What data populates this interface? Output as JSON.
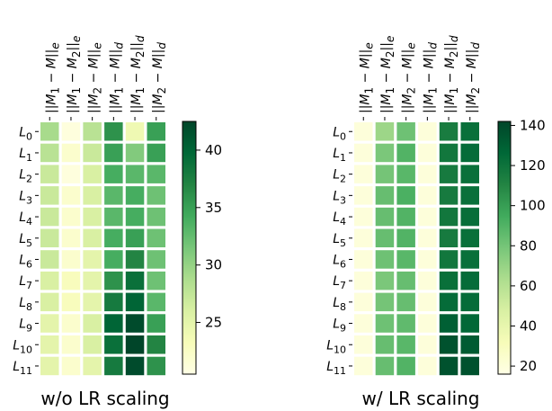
{
  "chart_data": [
    {
      "type": "heatmap",
      "caption": "w/o LR scaling",
      "columns": [
        "||M1 − M||e",
        "||M1 − M2||e",
        "||M2 − M||e",
        "||M1 − M||d",
        "||M1 − M2||d",
        "||M2 − M||d"
      ],
      "rows": [
        "L0",
        "L1",
        "L2",
        "L3",
        "L4",
        "L5",
        "L6",
        "L7",
        "L8",
        "L9",
        "L10",
        "L11"
      ],
      "values": [
        [
          29,
          21,
          28,
          36,
          24,
          35
        ],
        [
          28,
          22,
          27,
          35,
          31,
          35
        ],
        [
          27,
          21,
          26,
          34,
          33,
          33
        ],
        [
          27,
          22,
          26,
          33,
          34,
          32
        ],
        [
          27,
          22,
          26,
          33,
          34,
          32
        ],
        [
          27,
          22,
          26,
          34,
          35,
          32
        ],
        [
          27,
          22,
          25,
          34,
          37,
          32
        ],
        [
          26,
          23,
          25,
          36,
          39,
          32
        ],
        [
          26,
          23,
          25,
          38,
          40,
          33
        ],
        [
          25,
          22,
          26,
          40,
          42,
          35
        ],
        [
          25,
          22,
          26,
          39,
          43,
          37
        ],
        [
          25,
          22,
          25,
          38,
          42,
          36
        ]
      ],
      "colorbar": {
        "min": 20.5,
        "max": 42.5,
        "ticks": [
          25,
          30,
          35,
          40
        ]
      }
    },
    {
      "type": "heatmap",
      "caption": "w/ LR scaling",
      "columns": [
        "||M1 − M||e",
        "||M1 − M2||e",
        "||M2 − M||e",
        "||M1 − M||d",
        "||M1 − M2||d",
        "||M2 − M||d"
      ],
      "rows": [
        "L0",
        "L1",
        "L2",
        "L3",
        "L4",
        "L5",
        "L6",
        "L7",
        "L8",
        "L9",
        "L10",
        "L11"
      ],
      "values": [
        [
          20,
          68,
          82,
          20,
          115,
          122
        ],
        [
          20,
          78,
          90,
          20,
          118,
          124
        ],
        [
          20,
          80,
          88,
          20,
          116,
          122
        ],
        [
          20,
          84,
          92,
          20,
          116,
          122
        ],
        [
          20,
          84,
          90,
          20,
          118,
          123
        ],
        [
          20,
          84,
          90,
          20,
          116,
          122
        ],
        [
          20,
          82,
          88,
          20,
          118,
          122
        ],
        [
          20,
          78,
          84,
          20,
          122,
          124
        ],
        [
          20,
          80,
          84,
          20,
          124,
          124
        ],
        [
          20,
          82,
          86,
          20,
          130,
          126
        ],
        [
          20,
          84,
          88,
          20,
          136,
          132
        ],
        [
          20,
          84,
          90,
          20,
          136,
          136
        ]
      ],
      "colorbar": {
        "min": 16,
        "max": 142,
        "ticks": [
          20,
          40,
          60,
          80,
          100,
          120,
          140
        ]
      }
    }
  ]
}
